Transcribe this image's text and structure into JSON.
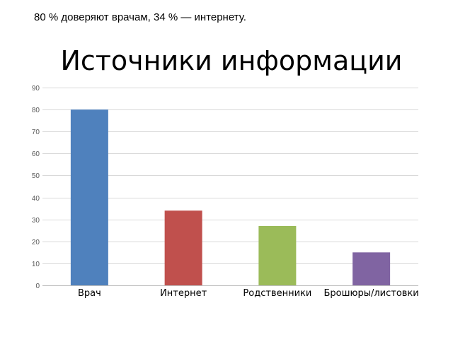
{
  "caption": "80 % доверяют врачам, 34 % — интернету.",
  "chart_data": {
    "type": "bar",
    "title": "Источники информации",
    "xlabel": "",
    "ylabel": "",
    "categories": [
      "Врач",
      "Интернет",
      "Родственники",
      "Брошюры/листовки"
    ],
    "values": [
      80,
      34,
      27,
      15
    ],
    "colors": [
      "#4f81bd",
      "#c0504d",
      "#9bbb59",
      "#8064a2"
    ],
    "ylim": [
      0,
      90
    ],
    "yticks": [
      0,
      10,
      20,
      30,
      40,
      50,
      60,
      70,
      80,
      90
    ],
    "grid": true,
    "legend": "none"
  }
}
